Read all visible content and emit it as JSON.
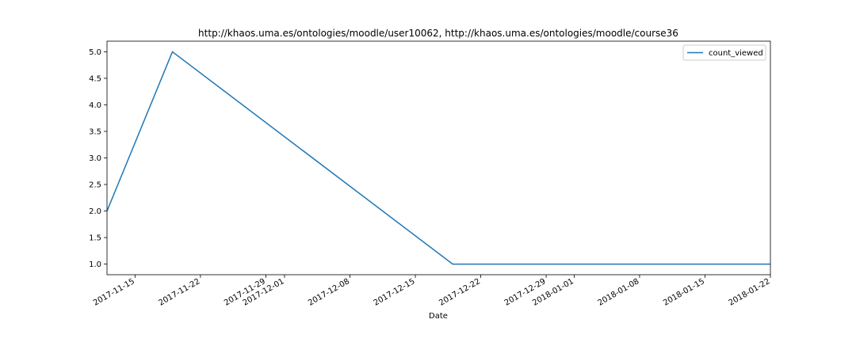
{
  "chart_data": {
    "type": "line",
    "title": "http://khaos.uma.es/ontologies/moodle/user10062, http://khaos.uma.es/ontologies/moodle/course36",
    "xlabel": "Date",
    "ylabel": "",
    "xlim": [
      "2017-11-12",
      "2018-01-22"
    ],
    "ylim": [
      0.8,
      5.2
    ],
    "x_ticks": [
      "2017-11-15",
      "2017-11-22",
      "2017-11-29",
      "2017-12-01",
      "2017-12-08",
      "2017-12-15",
      "2017-12-22",
      "2017-12-29",
      "2018-01-01",
      "2018-01-08",
      "2018-01-15",
      "2018-01-22"
    ],
    "y_ticks": [
      "1.0",
      "1.5",
      "2.0",
      "2.5",
      "3.0",
      "3.5",
      "4.0",
      "4.5",
      "5.0"
    ],
    "grid": false,
    "legend_position": "top-right",
    "series": [
      {
        "name": "count_viewed",
        "color": "#1f77b4",
        "x": [
          "2017-11-12",
          "2017-11-19",
          "2017-12-19",
          "2018-01-22"
        ],
        "y": [
          2,
          5,
          1,
          1
        ]
      }
    ]
  }
}
